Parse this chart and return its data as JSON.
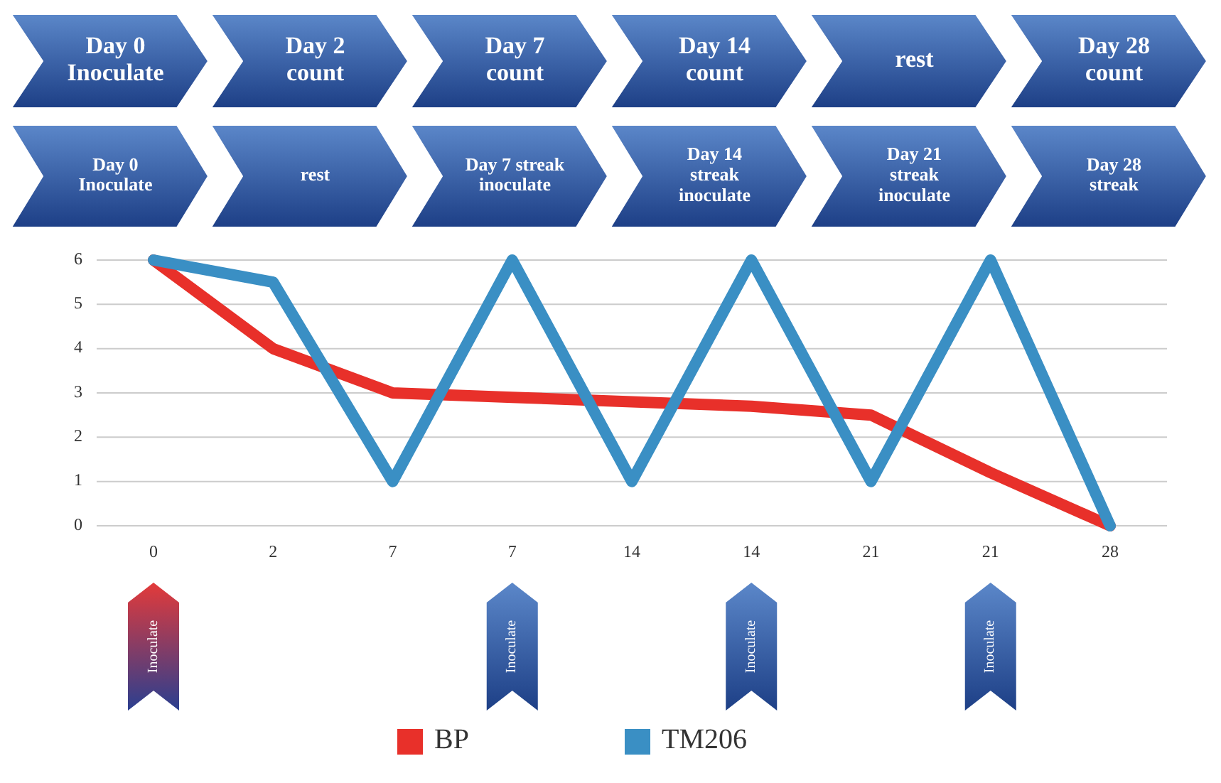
{
  "chart_data": {
    "type": "line",
    "categories": [
      "0",
      "2",
      "7",
      "7",
      "14",
      "14",
      "21",
      "21",
      "28"
    ],
    "series": [
      {
        "name": "BP",
        "color": "#e8302a",
        "values": [
          6,
          4,
          3,
          2.9,
          2.8,
          2.7,
          2.5,
          1.2,
          0
        ]
      },
      {
        "name": "TM206",
        "color": "#3a8fc4",
        "values": [
          6,
          5.5,
          1,
          6,
          1,
          6,
          1,
          6,
          0
        ]
      }
    ],
    "ylim": [
      0,
      6
    ],
    "yticks": [
      0,
      1,
      2,
      3,
      4,
      5,
      6
    ],
    "grid": "y",
    "legend": "bottom",
    "marker": "none",
    "line_style": "solid",
    "annotations": [
      "Day 0 Inoculate",
      "Day 2 count",
      "Day 7 count",
      "Day 14 count",
      "rest",
      "Day 28 count",
      "Day 0 Inoculate",
      "rest",
      "Day 7 streak inoculate",
      "Day 14 streak inoculate",
      "Day 21 streak inoculate",
      "Day 28 streak",
      "Inoculate",
      "Inoculate",
      "Inoculate",
      "Inoculate"
    ]
  }
}
